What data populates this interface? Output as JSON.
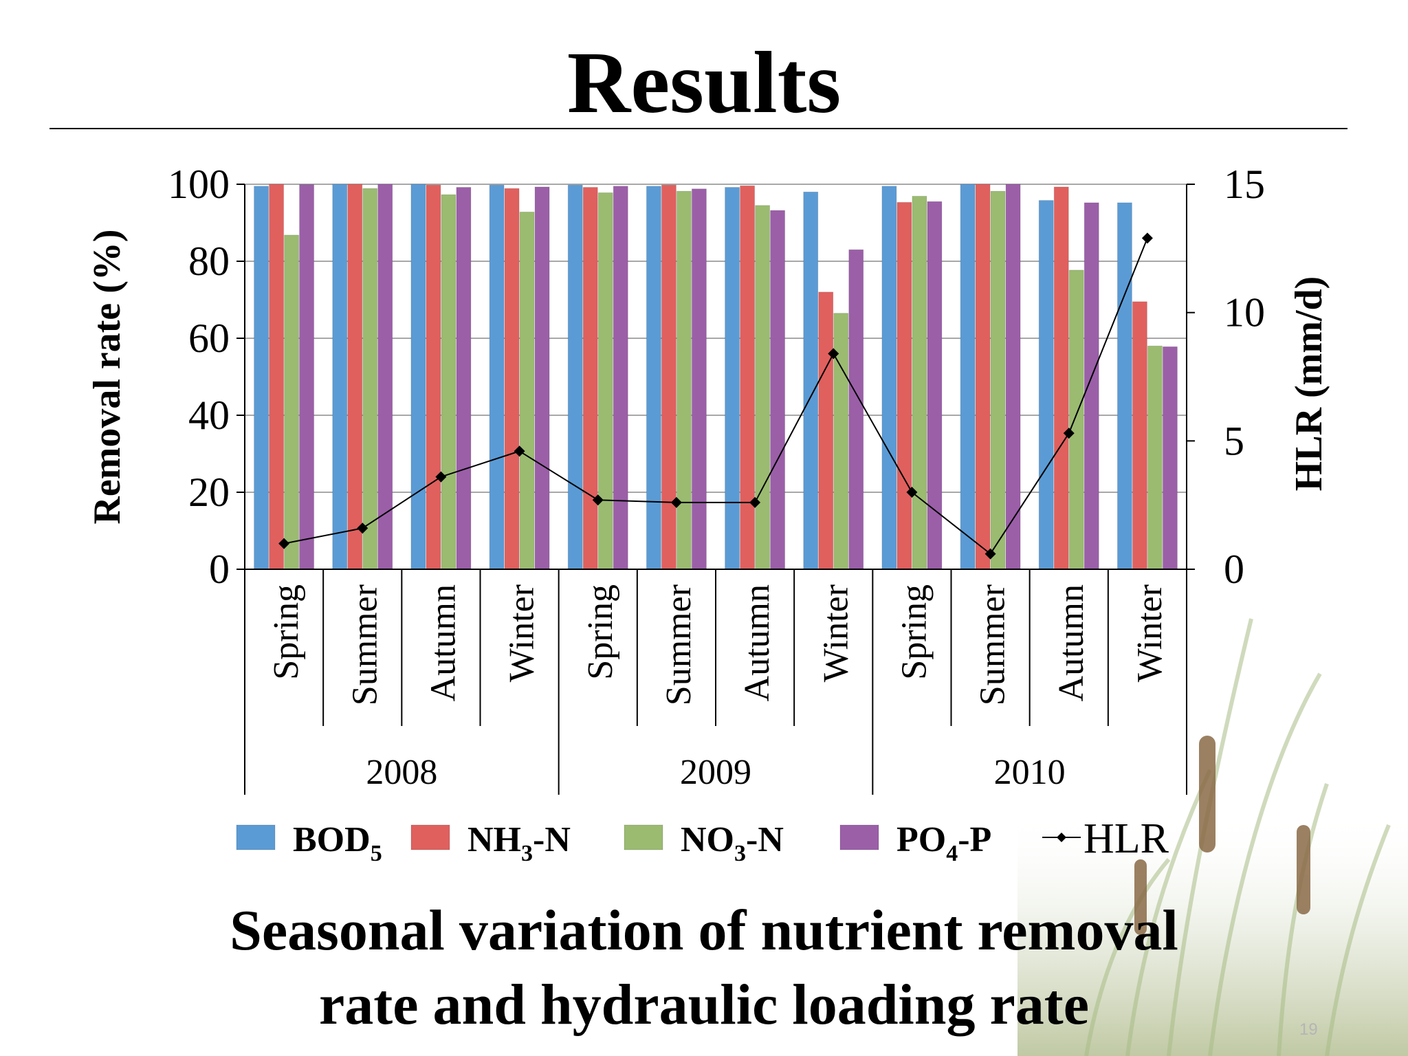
{
  "slide": {
    "title": "Results",
    "caption_line1": "Seasonal variation of nutrient removal",
    "caption_line2": "rate and hydraulic loading rate",
    "page_number": "19"
  },
  "chart_data": {
    "type": "bar",
    "title": "",
    "ylabel": "Removal rate  (%)",
    "y2label": "HLR (mm/d)",
    "ylim": [
      0,
      100
    ],
    "y2lim": [
      0,
      15
    ],
    "yticks": [
      "0",
      "20",
      "40",
      "60",
      "80",
      "100"
    ],
    "y2ticks": [
      "0",
      "5",
      "10",
      "15"
    ],
    "grid": true,
    "legend_position": "bottom",
    "categories": [
      "Spring",
      "Summer",
      "Autumn",
      "Winter",
      "Spring",
      "Summer",
      "Autumn",
      "Winter",
      "Spring",
      "Summer",
      "Autumn",
      "Winter"
    ],
    "groups": [
      {
        "label": "2008",
        "size": 4
      },
      {
        "label": "2009",
        "size": 4
      },
      {
        "label": "2010",
        "size": 4
      }
    ],
    "series": [
      {
        "name": "BOD",
        "sub": "5",
        "suffix": "",
        "color": "#5b9bd5",
        "values": [
          99.5,
          100,
          100,
          99.8,
          99.8,
          99.5,
          99.2,
          98,
          99.5,
          100,
          95.8,
          95.2
        ]
      },
      {
        "name": "NH",
        "sub": "3",
        "suffix": "-N",
        "color": "#e0605e",
        "values": [
          100,
          100,
          99.8,
          98.9,
          99.2,
          99.8,
          99.6,
          72,
          95.3,
          100,
          99.3,
          69.5
        ]
      },
      {
        "name": "NO",
        "sub": "3",
        "suffix": "-N",
        "color": "#9bbb71",
        "values": [
          86.8,
          98.9,
          97.3,
          92.8,
          97.8,
          98.2,
          94.5,
          66.5,
          96.9,
          98.2,
          77.7,
          58
        ]
      },
      {
        "name": "PO",
        "sub": "4",
        "suffix": "-P",
        "color": "#9b5fa8",
        "values": [
          99.9,
          100,
          99.2,
          99.3,
          99.5,
          98.8,
          93.2,
          83,
          95.5,
          100,
          95.2,
          57.8
        ]
      }
    ],
    "line_series": {
      "name": "HLR",
      "axis": "right",
      "color": "#000000",
      "values": [
        1.0,
        1.6,
        3.6,
        4.6,
        2.7,
        2.6,
        2.6,
        8.4,
        3.0,
        0.6,
        5.3,
        12.9
      ]
    }
  }
}
